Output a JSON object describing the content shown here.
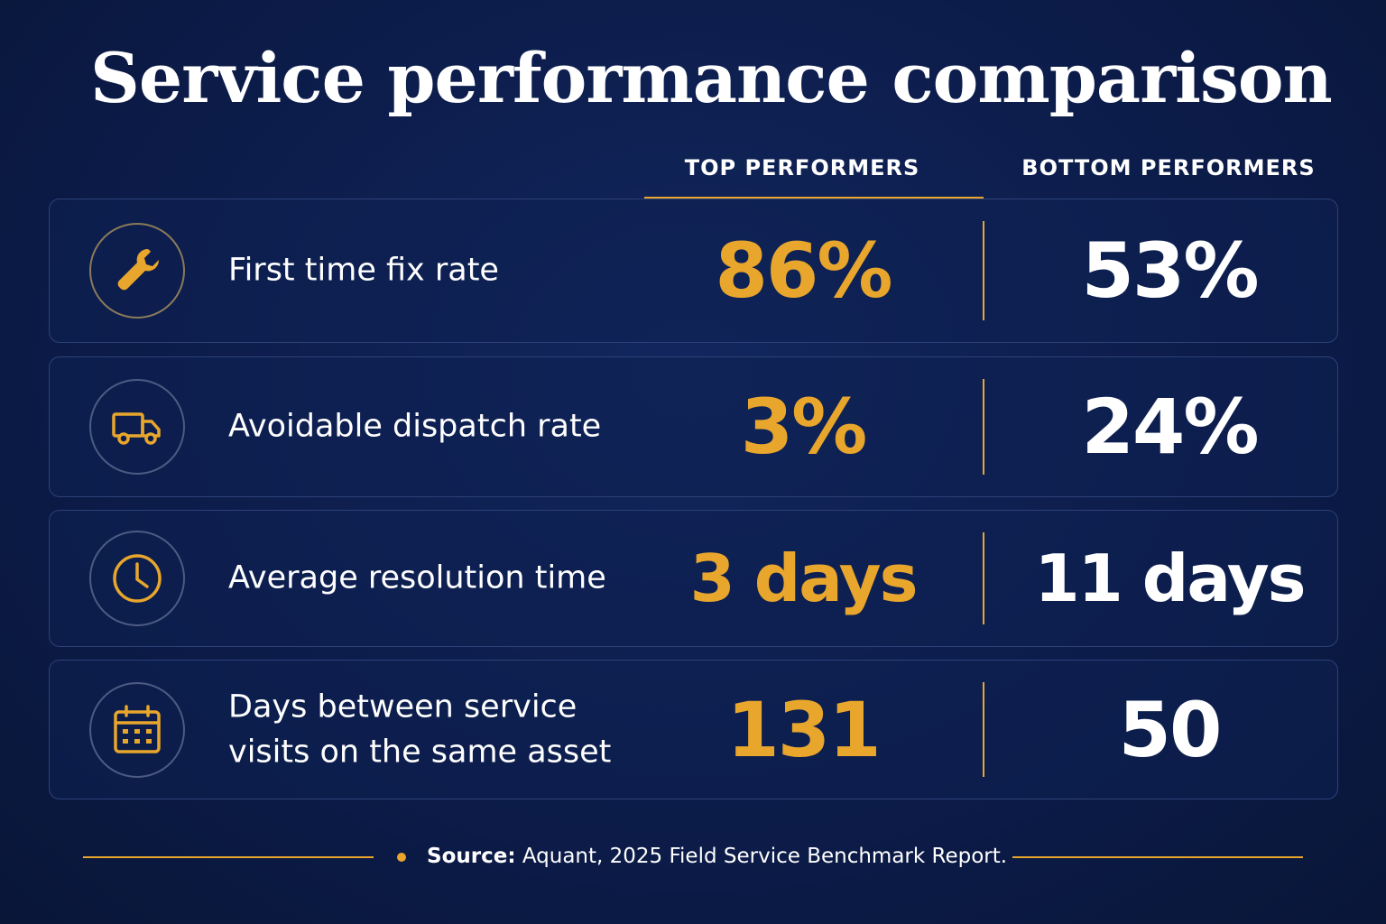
{
  "title": "Service performance comparison",
  "columns": {
    "top": "TOP PERFORMERS",
    "bottom": "BOTTOM PERFORMERS"
  },
  "rows": [
    {
      "icon": "wrench-icon",
      "metric": "First time fix rate",
      "top": "86%",
      "bottom": "53%"
    },
    {
      "icon": "truck-icon",
      "metric": "Avoidable dispatch rate",
      "top": "3%",
      "bottom": "24%"
    },
    {
      "icon": "clock-icon",
      "metric": "Average resolution time",
      "top": "3 days",
      "bottom": "11 days"
    },
    {
      "icon": "calendar-icon",
      "metric": "Days between service visits on the same asset",
      "top": "131",
      "bottom": "50"
    }
  ],
  "footer": {
    "label": "Source:",
    "text": " Aquant, 2025 Field Service Benchmark Report."
  },
  "colors": {
    "accent": "#e8a62c",
    "background": "#0c1c4a",
    "text": "#ffffff"
  }
}
